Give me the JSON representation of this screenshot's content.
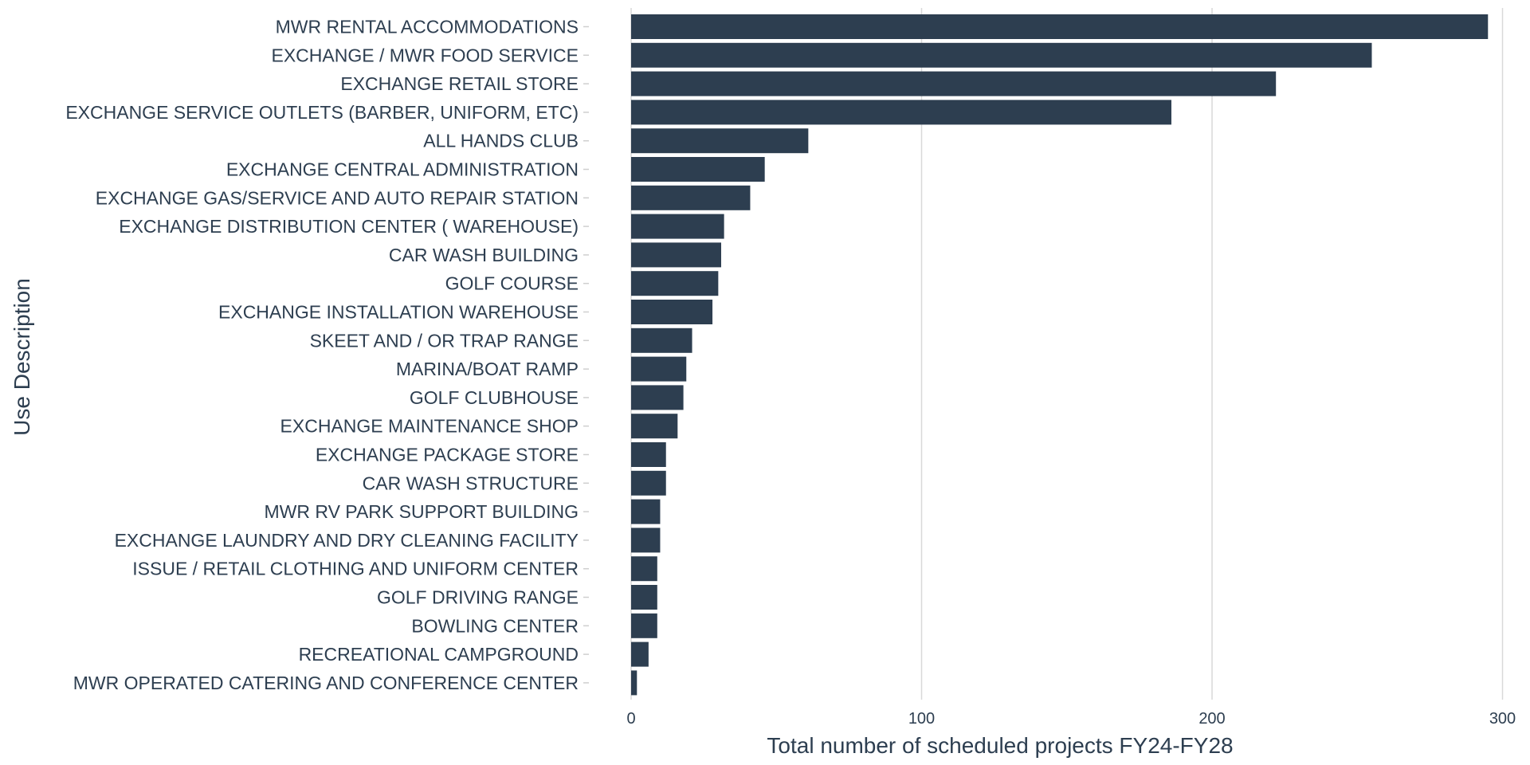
{
  "chart_data": {
    "type": "bar",
    "orientation": "horizontal",
    "title": "",
    "xlabel": "Total number of scheduled projects FY24-FY28",
    "ylabel": "Use Description",
    "xlim": [
      0,
      305
    ],
    "xticks": [
      0,
      100,
      200,
      300
    ],
    "grid": true,
    "bar_color": "#2d3e50",
    "categories": [
      "MWR RENTAL ACCOMMODATIONS",
      "EXCHANGE / MWR FOOD SERVICE",
      "EXCHANGE RETAIL STORE",
      "EXCHANGE SERVICE OUTLETS (BARBER, UNIFORM, ETC)",
      "ALL HANDS CLUB",
      "EXCHANGE CENTRAL ADMINISTRATION",
      "EXCHANGE GAS/SERVICE AND AUTO REPAIR STATION",
      "EXCHANGE DISTRIBUTION CENTER ( WAREHOUSE)",
      "CAR WASH BUILDING",
      "GOLF COURSE",
      "EXCHANGE INSTALLATION WAREHOUSE",
      "SKEET AND / OR TRAP RANGE",
      "MARINA/BOAT RAMP",
      "GOLF CLUBHOUSE",
      "EXCHANGE MAINTENANCE SHOP",
      "EXCHANGE PACKAGE STORE",
      "CAR WASH STRUCTURE",
      "MWR RV PARK SUPPORT BUILDING",
      "EXCHANGE LAUNDRY AND DRY CLEANING FACILITY",
      "ISSUE / RETAIL CLOTHING AND UNIFORM CENTER",
      "GOLF DRIVING RANGE",
      "BOWLING CENTER",
      "RECREATIONAL CAMPGROUND",
      "MWR OPERATED CATERING AND CONFERENCE CENTER"
    ],
    "values": [
      295,
      255,
      222,
      186,
      61,
      46,
      41,
      32,
      31,
      30,
      28,
      21,
      19,
      18,
      16,
      12,
      12,
      10,
      10,
      9,
      9,
      9,
      6,
      2
    ]
  }
}
